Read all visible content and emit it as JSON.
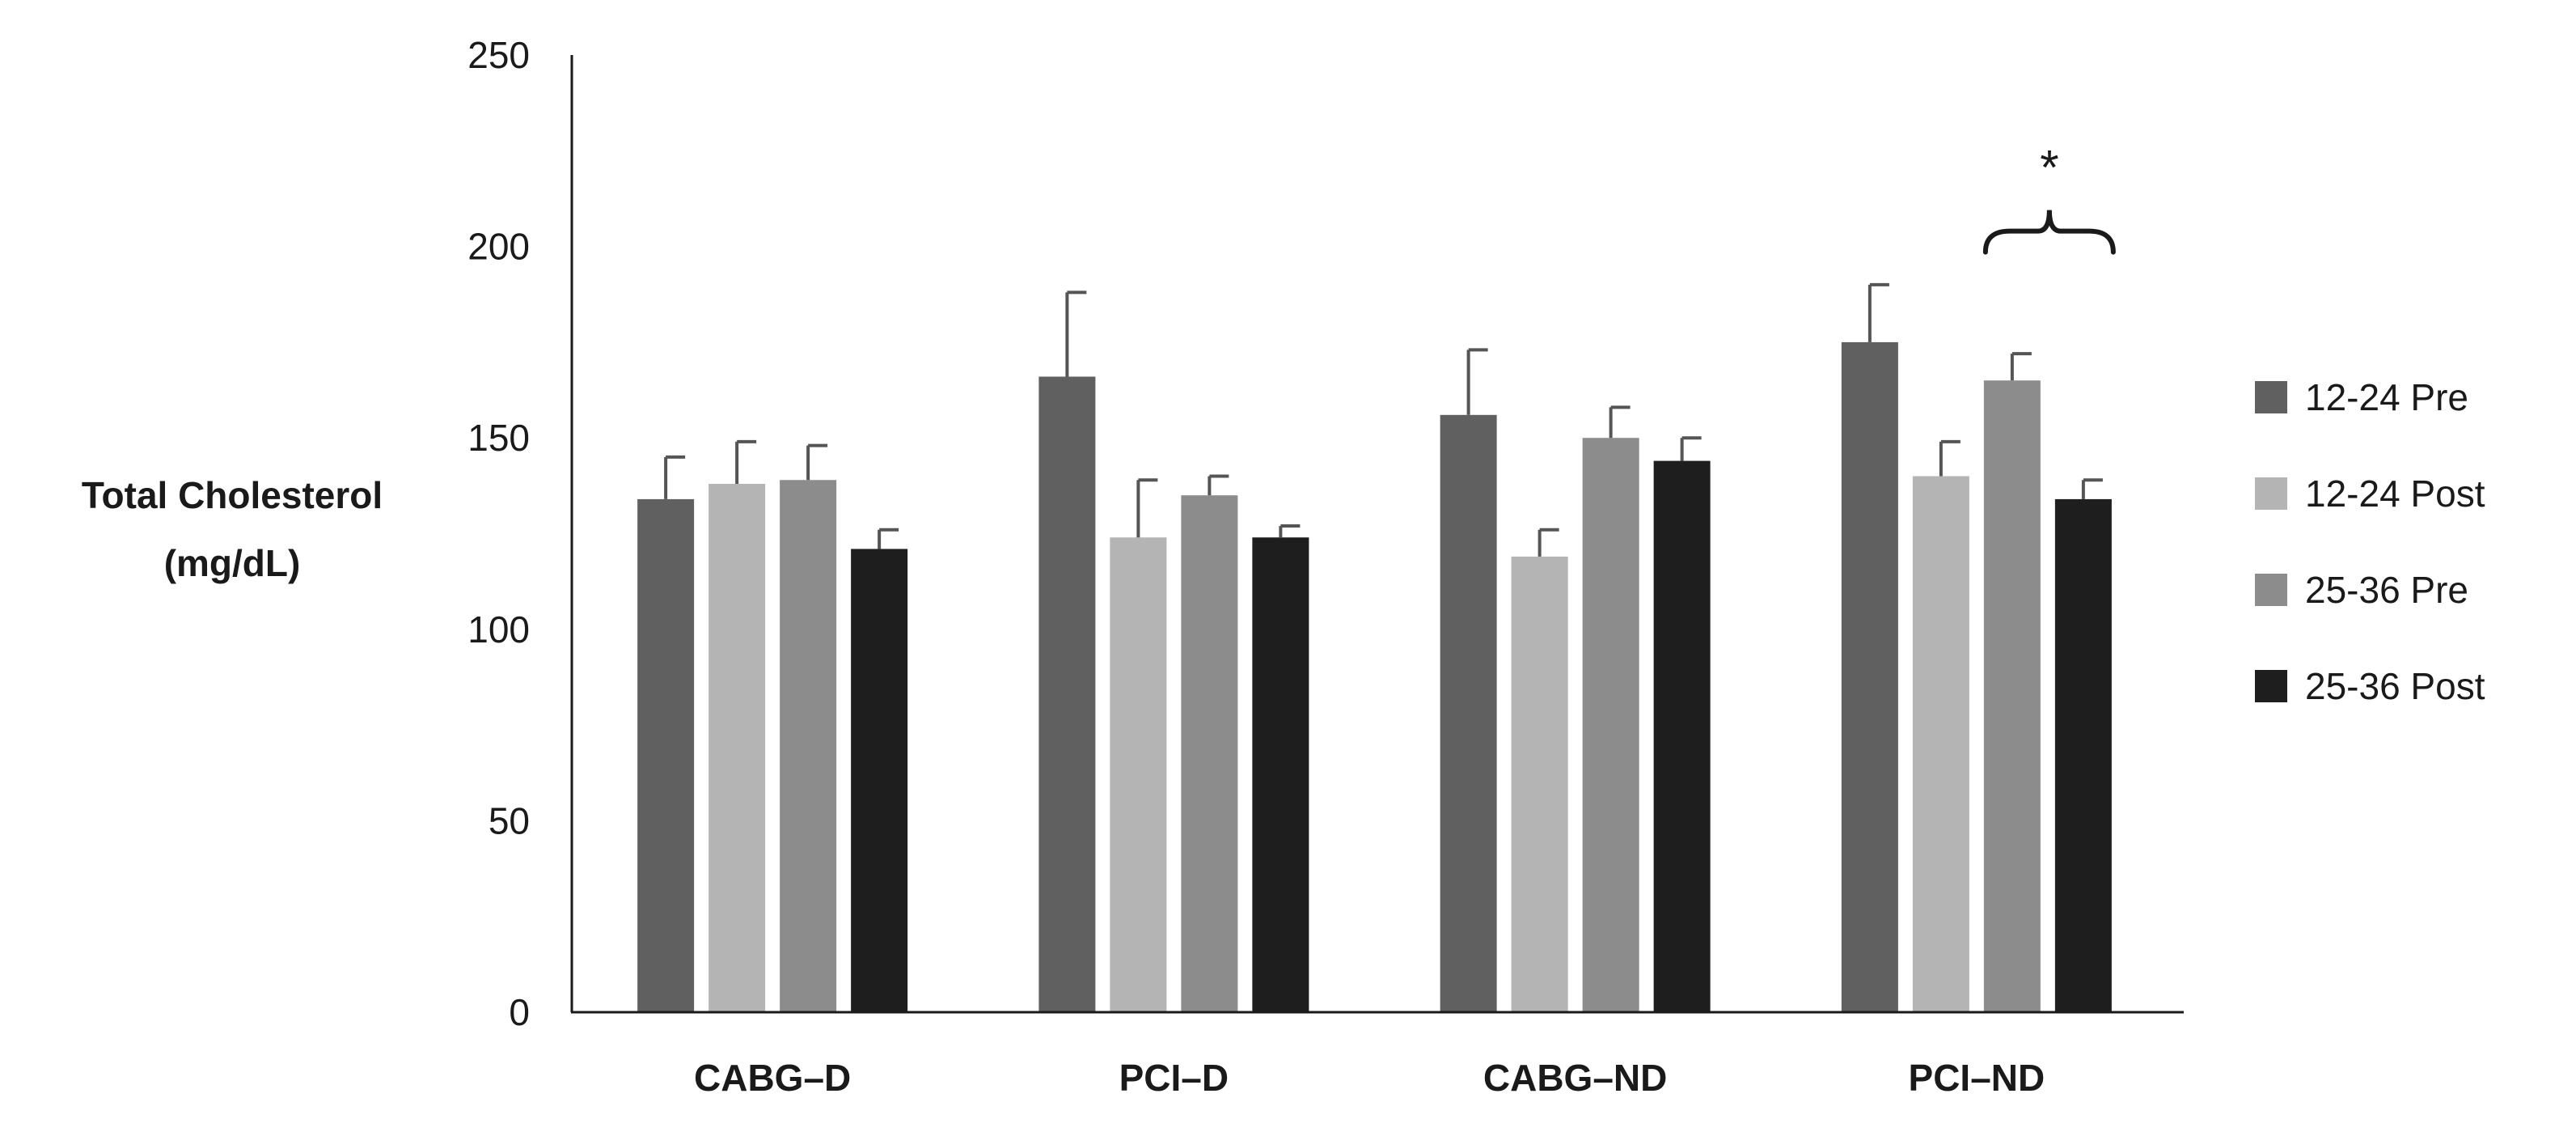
{
  "chart_data": {
    "type": "bar",
    "title": "",
    "xlabel": "",
    "ylabel_line1": "Total Cholesterol",
    "ylabel_line2": "(mg/dL)",
    "ylim": [
      0,
      250
    ],
    "yticks": [
      0,
      50,
      100,
      150,
      200,
      250
    ],
    "grid": false,
    "legend_position": "right",
    "categories": [
      "CABG–D",
      "PCI–D",
      "CABG–ND",
      "PCI–ND"
    ],
    "series": [
      {
        "name": "12-24 Pre",
        "color": "#606060",
        "values": [
          134,
          166,
          156,
          175
        ],
        "errors": [
          11,
          22,
          17,
          15
        ]
      },
      {
        "name": "12-24 Post",
        "color": "#b4b4b4",
        "values": [
          138,
          124,
          119,
          140
        ],
        "errors": [
          11,
          15,
          7,
          9
        ]
      },
      {
        "name": "25-36 Pre",
        "color": "#8c8c8c",
        "values": [
          139,
          135,
          150,
          165
        ],
        "errors": [
          9,
          5,
          8,
          7
        ]
      },
      {
        "name": "25-36 Post",
        "color": "#1e1e1e",
        "values": [
          121,
          124,
          144,
          134
        ],
        "errors": [
          5,
          3,
          6,
          5
        ]
      }
    ],
    "annotations": [
      {
        "text": "*",
        "category": "PCI–ND",
        "series_from": "25-36 Pre",
        "series_to": "25-36 Post",
        "at_value": 204
      }
    ]
  }
}
